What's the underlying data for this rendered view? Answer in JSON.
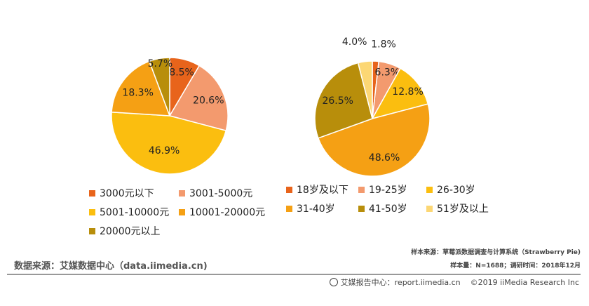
{
  "chart_data": [
    {
      "type": "pie",
      "title": "",
      "categories": [
        "3000元以下",
        "3001-5000元",
        "5001-10000元",
        "10001-20000元",
        "20000元以上"
      ],
      "values": [
        8.5,
        20.6,
        46.9,
        18.3,
        5.7
      ],
      "labels": [
        "8.5%",
        "20.6%",
        "46.9%",
        "18.3%",
        "5.7%"
      ],
      "colors": [
        "#E8641B",
        "#F39A6E",
        "#FBBE0F",
        "#F5A014",
        "#B88E0B"
      ],
      "legend_placement": "bottom"
    },
    {
      "type": "pie",
      "title": "",
      "categories": [
        "18岁及以下",
        "19-25岁",
        "26-30岁",
        "31-40岁",
        "41-50岁",
        "51岁及以上"
      ],
      "values": [
        1.8,
        6.3,
        12.8,
        48.6,
        26.5,
        4.0
      ],
      "labels": [
        "1.8%",
        "6.3%",
        "12.8%",
        "48.6%",
        "26.5%",
        "4.0%"
      ],
      "colors": [
        "#E8641B",
        "#F39A6E",
        "#FBBE0F",
        "#F5A014",
        "#B88E0B",
        "#FCD774"
      ],
      "legend_placement": "bottom"
    }
  ],
  "footer": {
    "source": "数据来源：艾媒数据中心（data.iimedia.cn)",
    "sample_source": "样本来源：草莓派数据调查与计算系统（Strawberry Pie)",
    "sample_size": "样本量：N=1688；调研时间：2018年12月",
    "report_site": "艾媒报告中心：report.iimedia.cn",
    "copyright": "©2019  iiMedia Research  Inc"
  }
}
